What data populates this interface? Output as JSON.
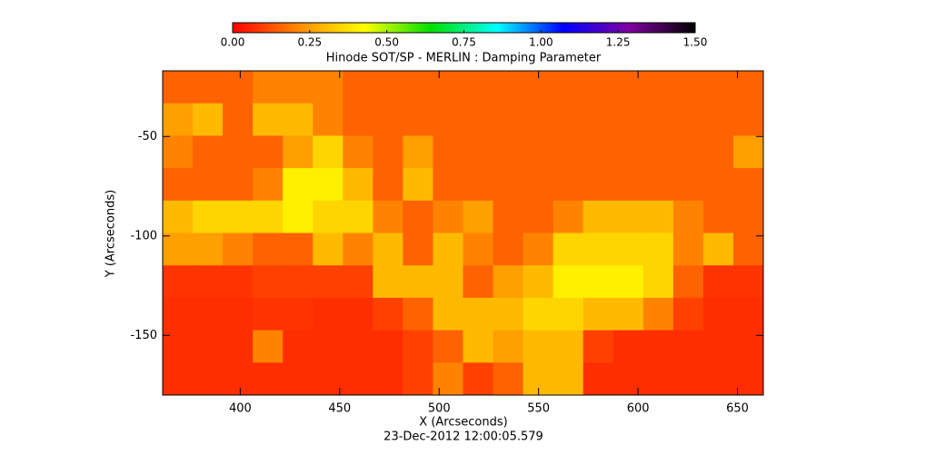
{
  "chart_data": {
    "type": "heatmap",
    "title": "Hinode SOT/SP - MERLIN : Damping Parameter",
    "x_label": "X (Arcseconds)",
    "y_label": "Y (Arcseconds)",
    "annotation": "23-Dec-2012 12:00:05.579",
    "xlim": [
      361,
      663
    ],
    "ylim": [
      -180,
      -17
    ],
    "xticks": [
      400,
      450,
      500,
      550,
      600,
      650
    ],
    "yticks": [
      -50,
      -100,
      -150
    ],
    "zlim": [
      0,
      1.5
    ],
    "zticks": [
      {
        "value": 0,
        "label": "0.00"
      },
      {
        "value": 0.25,
        "label": "0.25"
      },
      {
        "value": 0.5,
        "label": "0.50"
      },
      {
        "value": 0.75,
        "label": "0.75"
      },
      {
        "value": 1,
        "label": "1.00"
      },
      {
        "value": 1.25,
        "label": "1.25"
      },
      {
        "value": 1.5,
        "label": "1.50"
      }
    ],
    "colors": [
      "#ff0000",
      "#ff8c00",
      "#ffff00",
      "#00e000",
      "#00ffff",
      "#0000ff",
      "#8000a0",
      "#000000"
    ],
    "z": [
      [
        0.15,
        0.15,
        0.15,
        0.2,
        0.2,
        0.2,
        0.15,
        0.15,
        0.15,
        0.15,
        0.15,
        0.15,
        0.15,
        0.15,
        0.15,
        0.15,
        0.15,
        0.15,
        0.15,
        0.15
      ],
      [
        0.25,
        0.3,
        0.15,
        0.3,
        0.3,
        0.2,
        0.15,
        0.15,
        0.15,
        0.15,
        0.15,
        0.15,
        0.15,
        0.15,
        0.15,
        0.15,
        0.15,
        0.15,
        0.15,
        0.15
      ],
      [
        0.2,
        0.15,
        0.15,
        0.15,
        0.25,
        0.35,
        0.2,
        0.15,
        0.25,
        0.15,
        0.15,
        0.15,
        0.15,
        0.15,
        0.15,
        0.15,
        0.15,
        0.15,
        0.15,
        0.25
      ],
      [
        0.15,
        0.15,
        0.15,
        0.2,
        0.4,
        0.4,
        0.3,
        0.15,
        0.3,
        0.15,
        0.15,
        0.15,
        0.15,
        0.15,
        0.15,
        0.15,
        0.15,
        0.15,
        0.15,
        0.15
      ],
      [
        0.3,
        0.35,
        0.35,
        0.35,
        0.4,
        0.35,
        0.35,
        0.2,
        0.15,
        0.2,
        0.25,
        0.15,
        0.15,
        0.2,
        0.3,
        0.3,
        0.3,
        0.2,
        0.15,
        0.15
      ],
      [
        0.25,
        0.25,
        0.2,
        0.15,
        0.15,
        0.3,
        0.2,
        0.3,
        0.15,
        0.3,
        0.2,
        0.15,
        0.2,
        0.35,
        0.35,
        0.35,
        0.35,
        0.2,
        0.3,
        0.15
      ],
      [
        0.08,
        0.08,
        0.08,
        0.1,
        0.1,
        0.1,
        0.1,
        0.3,
        0.3,
        0.3,
        0.15,
        0.25,
        0.3,
        0.4,
        0.4,
        0.4,
        0.35,
        0.15,
        0.08,
        0.08
      ],
      [
        0.07,
        0.07,
        0.07,
        0.08,
        0.08,
        0.07,
        0.07,
        0.1,
        0.15,
        0.3,
        0.3,
        0.3,
        0.35,
        0.35,
        0.3,
        0.3,
        0.2,
        0.1,
        0.07,
        0.07
      ],
      [
        0.07,
        0.07,
        0.07,
        0.2,
        0.07,
        0.07,
        0.07,
        0.07,
        0.1,
        0.15,
        0.3,
        0.25,
        0.3,
        0.3,
        0.1,
        0.07,
        0.07,
        0.07,
        0.07,
        0.07
      ],
      [
        0.07,
        0.07,
        0.07,
        0.07,
        0.07,
        0.07,
        0.07,
        0.07,
        0.1,
        0.2,
        0.1,
        0.15,
        0.3,
        0.3,
        0.07,
        0.07,
        0.07,
        0.07,
        0.07,
        0.07
      ]
    ]
  }
}
